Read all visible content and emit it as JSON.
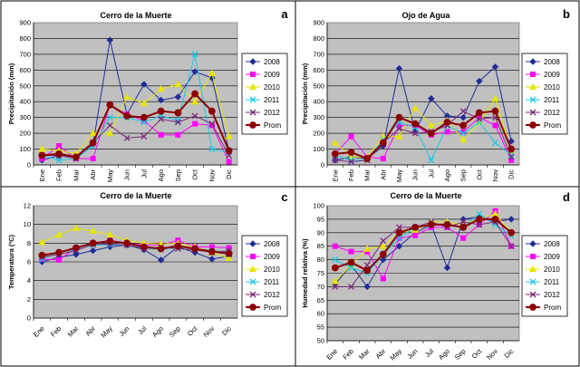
{
  "chart_data": [
    {
      "id": "a",
      "type": "line",
      "letter": "a",
      "title": "Cerro de la Muerte",
      "ylabel": "Precipitación (mm)",
      "xlabel": "",
      "ylim": [
        0,
        900
      ],
      "yticks": [
        0,
        100,
        200,
        300,
        400,
        500,
        600,
        700,
        800,
        900
      ],
      "categories": [
        "Ene",
        "Feb",
        "Mar",
        "Abr",
        "May",
        "Jun",
        "Jul",
        "Ago",
        "Sep",
        "Oct",
        "Nov",
        "Dic"
      ],
      "series": [
        {
          "name": "2008",
          "color": "#1f2d9a",
          "marker": "diamond",
          "values": [
            30,
            60,
            50,
            130,
            790,
            320,
            510,
            410,
            430,
            590,
            550,
            90
          ]
        },
        {
          "name": "2009",
          "color": "#ff00ff",
          "marker": "square",
          "values": [
            40,
            120,
            40,
            40,
            380,
            320,
            280,
            190,
            190,
            260,
            250,
            20
          ]
        },
        {
          "name": "2010",
          "color": "#e6e600",
          "marker": "triangle",
          "values": [
            100,
            90,
            70,
            200,
            200,
            430,
            390,
            480,
            510,
            400,
            580,
            180
          ]
        },
        {
          "name": "2011",
          "color": "#19c8e6",
          "marker": "x",
          "values": [
            60,
            30,
            40,
            120,
            300,
            300,
            270,
            310,
            280,
            700,
            100,
            80
          ]
        },
        {
          "name": "2012",
          "color": "#7a2a7a",
          "marker": "x",
          "values": [
            60,
            60,
            40,
            140,
            250,
            170,
            180,
            290,
            270,
            310,
            260,
            60
          ]
        },
        {
          "name": "Prom",
          "color": "#8b0000",
          "marker": "circle",
          "values": [
            60,
            70,
            50,
            140,
            380,
            310,
            300,
            340,
            330,
            450,
            340,
            90
          ]
        }
      ]
    },
    {
      "id": "b",
      "type": "line",
      "letter": "b",
      "title": "Ojo de Agua",
      "ylabel": "Precipitación (mm)",
      "xlabel": "",
      "ylim": [
        0,
        900
      ],
      "yticks": [
        0,
        100,
        200,
        300,
        400,
        500,
        600,
        700,
        800,
        900
      ],
      "categories": [
        "Ene",
        "Feb",
        "Mar",
        "Abr",
        "May",
        "Jun",
        "Jul",
        "Ago",
        "Sep",
        "Oct",
        "Nov",
        "Dic"
      ],
      "series": [
        {
          "name": "2008",
          "color": "#1f2d9a",
          "marker": "diamond",
          "values": [
            30,
            50,
            40,
            120,
            610,
            210,
            420,
            310,
            300,
            530,
            620,
            150
          ]
        },
        {
          "name": "2009",
          "color": "#ff00ff",
          "marker": "square",
          "values": [
            70,
            180,
            50,
            40,
            250,
            250,
            190,
            210,
            210,
            300,
            250,
            30
          ]
        },
        {
          "name": "2010",
          "color": "#e6e600",
          "marker": "triangle",
          "values": [
            140,
            50,
            50,
            180,
            180,
            360,
            250,
            280,
            160,
            270,
            420,
            90
          ]
        },
        {
          "name": "2011",
          "color": "#19c8e6",
          "marker": "x",
          "values": [
            60,
            30,
            30,
            160,
            270,
            240,
            30,
            250,
            200,
            270,
            140,
            60
          ]
        },
        {
          "name": "2012",
          "color": "#7a2a7a",
          "marker": "x",
          "values": [
            30,
            20,
            30,
            140,
            230,
            200,
            210,
            250,
            340,
            290,
            300,
            50
          ]
        },
        {
          "name": "Prom",
          "color": "#8b0000",
          "marker": "circle",
          "values": [
            70,
            80,
            40,
            140,
            300,
            260,
            200,
            270,
            250,
            330,
            340,
            100
          ]
        }
      ]
    },
    {
      "id": "c",
      "type": "line",
      "letter": "c",
      "title": "Cerro de la Muerte",
      "ylabel": "Temperatura (ºC)",
      "xlabel": "",
      "ylim": [
        0,
        12
      ],
      "yticks": [
        0,
        2,
        4,
        6,
        8,
        10,
        12
      ],
      "categories": [
        "Ene",
        "Feb",
        "Mar",
        "Abr",
        "May",
        "Jun",
        "Jul",
        "Ago",
        "Sep",
        "Oct",
        "Nov",
        "Dic"
      ],
      "series": [
        {
          "name": "2008",
          "color": "#1f2d9a",
          "marker": "diamond",
          "values": [
            6.0,
            6.5,
            6.8,
            7.2,
            7.6,
            7.8,
            7.3,
            6.2,
            7.6,
            7.0,
            6.3,
            6.6
          ]
        },
        {
          "name": "2009",
          "color": "#ff00ff",
          "marker": "square",
          "values": [
            6.3,
            6.2,
            7.5,
            8.0,
            8.3,
            8.0,
            7.8,
            7.8,
            8.3,
            7.6,
            7.6,
            7.5
          ]
        },
        {
          "name": "2010",
          "color": "#e6e600",
          "marker": "triangle",
          "values": [
            8.1,
            8.9,
            9.6,
            9.3,
            8.9,
            8.3,
            8.0,
            7.9,
            8.0,
            7.6,
            7.0,
            6.4
          ]
        },
        {
          "name": "2011",
          "color": "#19c8e6",
          "marker": "x",
          "values": [
            6.3,
            7.0,
            7.3,
            7.8,
            7.8,
            7.8,
            7.5,
            7.3,
            7.6,
            7.4,
            7.2,
            7.0
          ]
        },
        {
          "name": "2012",
          "color": "#7a2a7a",
          "marker": "x",
          "values": [
            6.5,
            6.8,
            7.2,
            7.9,
            7.9,
            7.8,
            7.4,
            7.6,
            7.4,
            7.3,
            7.0,
            7.2
          ]
        },
        {
          "name": "Prom",
          "color": "#8b0000",
          "marker": "circle",
          "values": [
            6.7,
            7.0,
            7.5,
            8.0,
            8.2,
            8.0,
            7.6,
            7.4,
            7.7,
            7.4,
            7.1,
            6.9
          ]
        }
      ]
    },
    {
      "id": "d",
      "type": "line",
      "letter": "d",
      "title": "Cerro de la Muerte",
      "ylabel": "Humedad relativa (%)",
      "xlabel": "",
      "ylim": [
        50,
        100
      ],
      "yticks": [
        50,
        55,
        60,
        65,
        70,
        75,
        80,
        85,
        90,
        95,
        100
      ],
      "categories": [
        "Ene",
        "Feb",
        "Mar",
        "Abr",
        "May",
        "Jun",
        "Jul",
        "Ago",
        "Sep",
        "Oct",
        "Nov",
        "Dic"
      ],
      "series": [
        {
          "name": "2008",
          "color": "#1f2d9a",
          "marker": "diamond",
          "values": [
            71,
            78,
            70,
            80,
            85,
            90,
            93,
            77,
            95,
            96,
            94,
            95
          ]
        },
        {
          "name": "2009",
          "color": "#ff00ff",
          "marker": "square",
          "values": [
            85,
            83,
            83,
            73,
            88,
            89,
            92,
            92,
            88,
            93,
            98,
            85
          ]
        },
        {
          "name": "2010",
          "color": "#e6e600",
          "marker": "triangle",
          "values": [
            72,
            78,
            84,
            85,
            90,
            91,
            94,
            94,
            93,
            95,
            97,
            90
          ]
        },
        {
          "name": "2011",
          "color": "#19c8e6",
          "marker": "x",
          "values": [
            80,
            77,
            75,
            82,
            88,
            92,
            93,
            93,
            92,
            97,
            93,
            89
          ]
        },
        {
          "name": "2012",
          "color": "#7a2a7a",
          "marker": "x",
          "values": [
            70,
            70,
            78,
            87,
            92,
            92,
            94,
            92,
            94,
            93,
            94,
            85
          ]
        },
        {
          "name": "Prom",
          "color": "#8b0000",
          "marker": "circle",
          "values": [
            77,
            79,
            76,
            82,
            90,
            92,
            93,
            93,
            92,
            95,
            95,
            90
          ]
        }
      ]
    }
  ]
}
